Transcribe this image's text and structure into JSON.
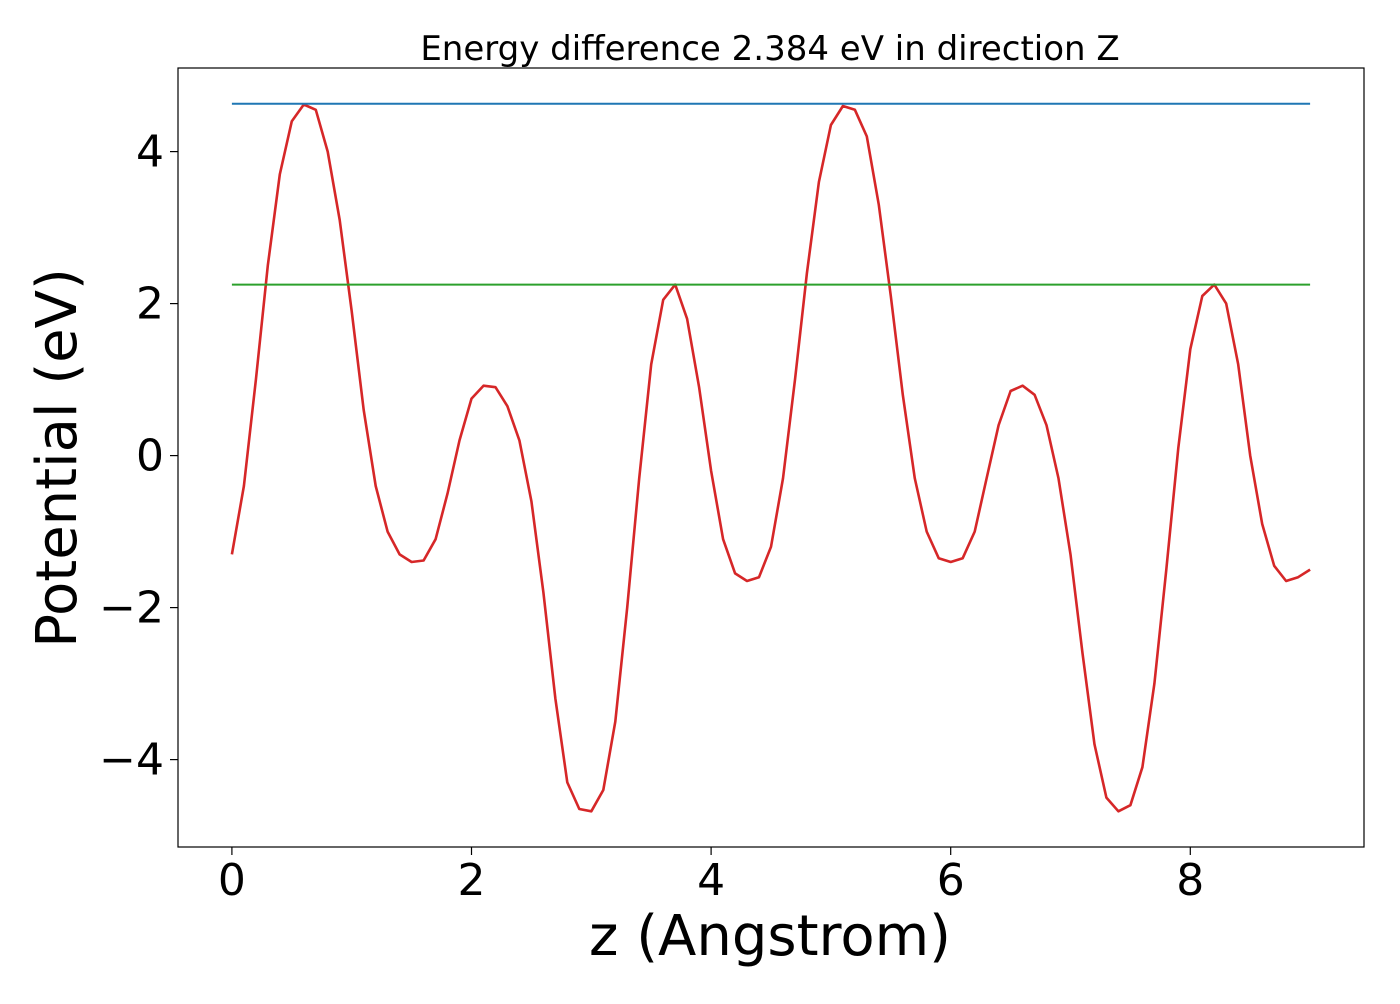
{
  "chart_data": {
    "type": "line",
    "title": "Energy difference 2.384 eV in direction Z",
    "xlabel": "z (Angstrom)",
    "ylabel": "Potential (eV)",
    "xlim": [
      -0.45,
      9.45
    ],
    "ylim": [
      -5.15,
      5.1
    ],
    "xticks": [
      0,
      2,
      4,
      6,
      8
    ],
    "yticks": [
      -4,
      -2,
      0,
      2,
      4
    ],
    "xtick_labels": [
      "0",
      "2",
      "4",
      "6",
      "8"
    ],
    "ytick_labels": [
      "−4",
      "−2",
      "0",
      "2",
      "4"
    ],
    "grid": false,
    "legend": "none",
    "series": [
      {
        "color": "#d62728",
        "x": [
          0.0,
          0.1,
          0.2,
          0.3,
          0.4,
          0.5,
          0.6,
          0.7,
          0.8,
          0.9,
          1.0,
          1.1,
          1.2,
          1.3,
          1.4,
          1.5,
          1.6,
          1.7,
          1.8,
          1.9,
          2.0,
          2.1,
          2.2,
          2.3,
          2.4,
          2.5,
          2.6,
          2.7,
          2.8,
          2.9,
          3.0,
          3.1,
          3.2,
          3.3,
          3.4,
          3.5,
          3.6,
          3.7,
          3.8,
          3.9,
          4.0,
          4.1,
          4.2,
          4.3,
          4.4,
          4.5,
          4.6,
          4.7,
          4.8,
          4.9,
          5.0,
          5.1,
          5.2,
          5.3,
          5.4,
          5.5,
          5.6,
          5.7,
          5.8,
          5.9,
          6.0,
          6.1,
          6.2,
          6.3,
          6.4,
          6.5,
          6.6,
          6.7,
          6.8,
          6.9,
          7.0,
          7.1,
          7.2,
          7.3,
          7.4,
          7.5,
          7.6,
          7.7,
          7.8,
          7.9,
          8.0,
          8.1,
          8.2,
          8.3,
          8.4,
          8.5,
          8.6,
          8.7,
          8.8,
          8.9,
          9.0
        ],
        "y": [
          -1.3,
          -0.4,
          1.0,
          2.5,
          3.7,
          4.4,
          4.62,
          4.55,
          4.0,
          3.1,
          1.9,
          0.6,
          -0.4,
          -1.0,
          -1.3,
          -1.4,
          -1.38,
          -1.1,
          -0.5,
          0.2,
          0.75,
          0.92,
          0.9,
          0.65,
          0.2,
          -0.6,
          -1.8,
          -3.2,
          -4.3,
          -4.65,
          -4.68,
          -4.4,
          -3.5,
          -2.0,
          -0.3,
          1.2,
          2.05,
          2.25,
          1.8,
          0.9,
          -0.2,
          -1.1,
          -1.55,
          -1.65,
          -1.6,
          -1.2,
          -0.3,
          1.0,
          2.4,
          3.6,
          4.35,
          4.6,
          4.55,
          4.2,
          3.3,
          2.1,
          0.8,
          -0.3,
          -1.0,
          -1.35,
          -1.4,
          -1.35,
          -1.0,
          -0.3,
          0.4,
          0.85,
          0.92,
          0.8,
          0.4,
          -0.3,
          -1.3,
          -2.6,
          -3.8,
          -4.5,
          -4.68,
          -4.6,
          -4.1,
          -3.0,
          -1.5,
          0.1,
          1.4,
          2.1,
          2.25,
          2.0,
          1.2,
          0.0,
          -0.9,
          -1.45,
          -1.65,
          -1.6,
          -1.5
        ]
      },
      {
        "color": "#1f77b4",
        "x": [
          0.0,
          9.0
        ],
        "y": [
          4.63,
          4.63
        ]
      },
      {
        "color": "#2ca02c",
        "x": [
          0.0,
          9.0
        ],
        "y": [
          2.25,
          2.25
        ]
      }
    ]
  }
}
